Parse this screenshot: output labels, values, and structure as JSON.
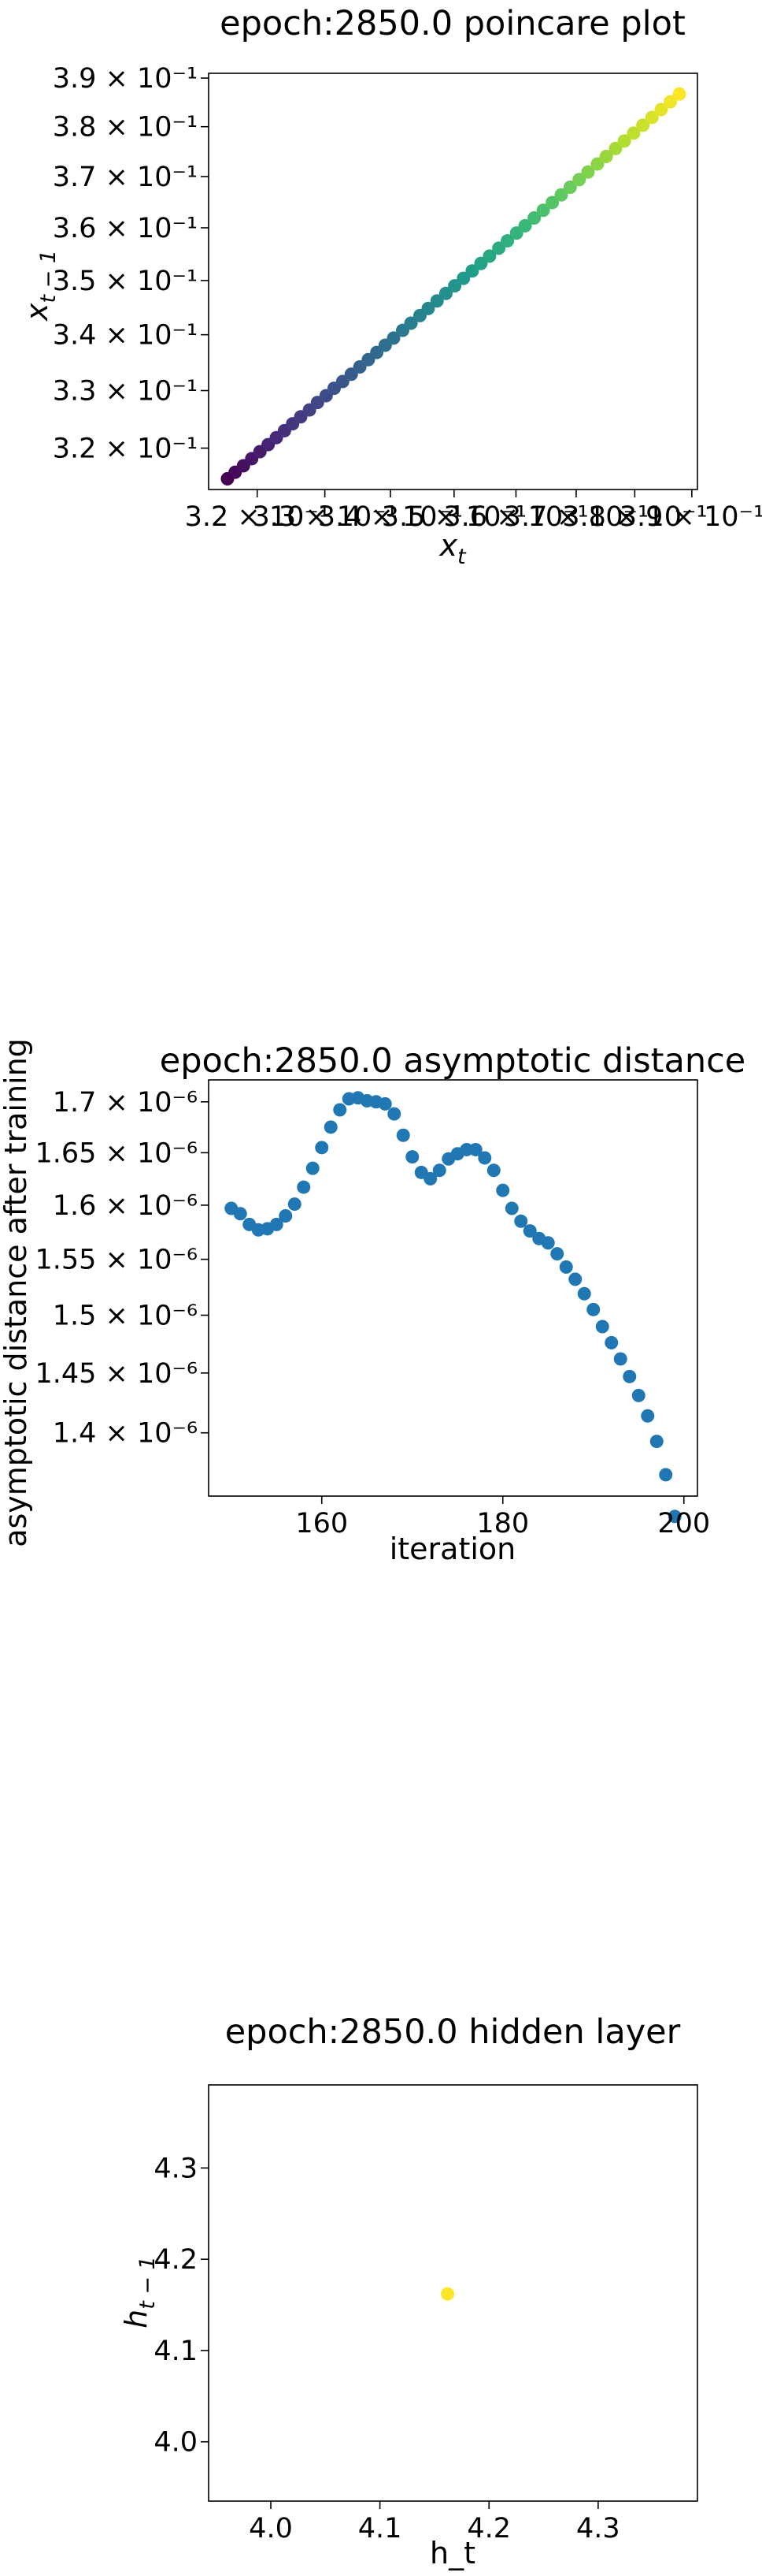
{
  "chart_data": [
    {
      "type": "scatter",
      "title": "epoch:2850.0 poincare plot",
      "xlabel": "x_t",
      "ylabel": "x_{t-1}",
      "xscale": "log",
      "yscale": "log",
      "xlim": [
        0.313,
        0.391
      ],
      "ylim": [
        0.313,
        0.391
      ],
      "x_tick_labels": [
        {
          "value": 0.32,
          "label": "3.2 × 10⁻¹"
        },
        {
          "value": 0.33,
          "label": "3.3 × 10⁻¹"
        },
        {
          "value": 0.34,
          "label": "3.4 × 10⁻¹"
        },
        {
          "value": 0.35,
          "label": "3.5 × 10⁻¹"
        },
        {
          "value": 0.36,
          "label": "3.6 × 10⁻¹"
        },
        {
          "value": 0.37,
          "label": "3.7 × 10⁻¹"
        },
        {
          "value": 0.38,
          "label": "3.8 × 10⁻¹"
        },
        {
          "value": 0.39,
          "label": "3.9 × 10⁻¹"
        }
      ],
      "y_tick_labels": [
        {
          "value": 0.32,
          "label": "3.2 × 10⁻¹"
        },
        {
          "value": 0.33,
          "label": "3.3 × 10⁻¹"
        },
        {
          "value": 0.34,
          "label": "3.4 × 10⁻¹"
        },
        {
          "value": 0.35,
          "label": "3.5 × 10⁻¹"
        },
        {
          "value": 0.36,
          "label": "3.6 × 10⁻¹"
        },
        {
          "value": 0.37,
          "label": "3.7 × 10⁻¹"
        },
        {
          "value": 0.38,
          "label": "3.8 × 10⁻¹"
        },
        {
          "value": 0.39,
          "label": "3.9 × 10⁻¹"
        }
      ],
      "colormap": "viridis",
      "x": [
        0.3157,
        0.3168,
        0.318,
        0.3192,
        0.3204,
        0.3216,
        0.3228,
        0.324,
        0.3252,
        0.3264,
        0.3277,
        0.3289,
        0.3302,
        0.3314,
        0.3327,
        0.334,
        0.3353,
        0.3366,
        0.3379,
        0.3392,
        0.3405,
        0.3419,
        0.3432,
        0.3446,
        0.3459,
        0.3473,
        0.3487,
        0.3501,
        0.3515,
        0.3529,
        0.3543,
        0.3557,
        0.3572,
        0.3586,
        0.3601,
        0.3615,
        0.363,
        0.3645,
        0.366,
        0.3675,
        0.369,
        0.3705,
        0.372,
        0.3736,
        0.3751,
        0.3767,
        0.3782,
        0.3798,
        0.3814,
        0.383,
        0.3846,
        0.3862,
        0.3878
      ],
      "y": [
        0.3148,
        0.3159,
        0.317,
        0.3182,
        0.3194,
        0.3206,
        0.3218,
        0.323,
        0.3242,
        0.3254,
        0.3266,
        0.3279,
        0.3291,
        0.3304,
        0.3316,
        0.3329,
        0.3342,
        0.3355,
        0.3368,
        0.3381,
        0.3394,
        0.3408,
        0.3421,
        0.3435,
        0.3448,
        0.3462,
        0.3476,
        0.349,
        0.3504,
        0.3518,
        0.3532,
        0.3546,
        0.3561,
        0.3575,
        0.359,
        0.3604,
        0.3619,
        0.3634,
        0.3649,
        0.3664,
        0.3679,
        0.3694,
        0.3709,
        0.3725,
        0.374,
        0.3756,
        0.3771,
        0.3787,
        0.3803,
        0.3819,
        0.3835,
        0.3851,
        0.3867
      ]
    },
    {
      "type": "scatter",
      "title": "epoch:2850.0 asymptotic distance",
      "xlabel": "iteration",
      "ylabel": "asymptotic distance after training",
      "yscale": "log",
      "xlim": [
        147.5,
        201.5
      ],
      "ylim": [
        1.349e-06,
        1.722e-06
      ],
      "x_tick_labels": [
        {
          "value": 160,
          "label": "160"
        },
        {
          "value": 180,
          "label": "180"
        },
        {
          "value": 200,
          "label": "200"
        }
      ],
      "y_tick_labels": [
        {
          "value": 1.4e-06,
          "label": "1.4 × 10⁻⁶"
        },
        {
          "value": 1.45e-06,
          "label": "1.45 × 10⁻⁶"
        },
        {
          "value": 1.5e-06,
          "label": "1.5 × 10⁻⁶"
        },
        {
          "value": 1.55e-06,
          "label": "1.55 × 10⁻⁶"
        },
        {
          "value": 1.6e-06,
          "label": "1.6 × 10⁻⁶"
        },
        {
          "value": 1.65e-06,
          "label": "1.65 × 10⁻⁶"
        },
        {
          "value": 1.7e-06,
          "label": "1.7 × 10⁻⁶"
        }
      ],
      "color": "#1f77b4",
      "x": [
        150,
        151,
        152,
        153,
        154,
        155,
        156,
        157,
        158,
        159,
        160,
        161,
        162,
        163,
        164,
        165,
        166,
        167,
        168,
        169,
        170,
        171,
        172,
        173,
        174,
        175,
        176,
        177,
        178,
        179,
        180,
        181,
        182,
        183,
        184,
        185,
        186,
        187,
        188,
        189,
        190,
        191,
        192,
        193,
        194,
        195,
        196,
        197,
        198,
        199
      ],
      "y": [
        1.597e-06,
        1.592e-06,
        1.582e-06,
        1.577e-06,
        1.578e-06,
        1.582e-06,
        1.59e-06,
        1.601e-06,
        1.617e-06,
        1.635e-06,
        1.655e-06,
        1.675e-06,
        1.692e-06,
        1.703e-06,
        1.704e-06,
        1.701e-06,
        1.7e-06,
        1.698e-06,
        1.688e-06,
        1.667e-06,
        1.646e-06,
        1.631e-06,
        1.625e-06,
        1.633e-06,
        1.644e-06,
        1.649e-06,
        1.653e-06,
        1.653e-06,
        1.645e-06,
        1.633e-06,
        1.614e-06,
        1.597e-06,
        1.585e-06,
        1.576e-06,
        1.569e-06,
        1.565e-06,
        1.555e-06,
        1.543e-06,
        1.532e-06,
        1.519e-06,
        1.505e-06,
        1.49e-06,
        1.476e-06,
        1.462e-06,
        1.447e-06,
        1.431e-06,
        1.414e-06,
        1.393e-06,
        1.366e-06,
        1.333e-06
      ]
    },
    {
      "type": "scatter",
      "title": "epoch:2850.0 hidden layer",
      "xlabel": "h_t",
      "ylabel": "h_{t-1}",
      "xlim": [
        3.943,
        4.391
      ],
      "ylim": [
        3.935,
        4.391
      ],
      "x_tick_labels": [
        {
          "value": 4.0,
          "label": "4.0"
        },
        {
          "value": 4.1,
          "label": "4.1"
        },
        {
          "value": 4.2,
          "label": "4.2"
        },
        {
          "value": 4.3,
          "label": "4.3"
        }
      ],
      "y_tick_labels": [
        {
          "value": 4.0,
          "label": "4.0"
        },
        {
          "value": 4.1,
          "label": "4.1"
        },
        {
          "value": 4.2,
          "label": "4.2"
        },
        {
          "value": 4.3,
          "label": "4.3"
        }
      ],
      "color": "#fde725",
      "x": [
        4.162
      ],
      "y": [
        4.162
      ]
    }
  ]
}
